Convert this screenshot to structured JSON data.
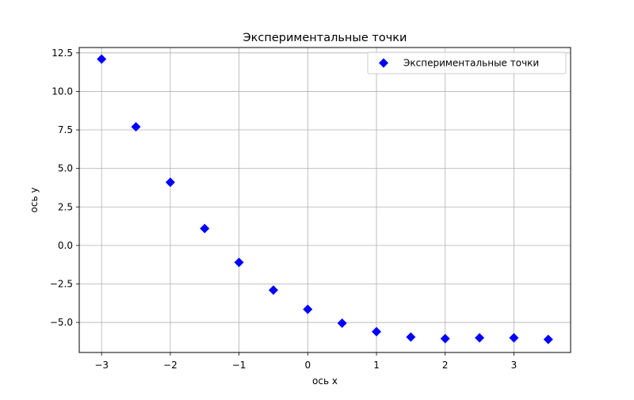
{
  "chart_data": {
    "type": "scatter",
    "title": "Экспериментальные точки",
    "xlabel": "ось x",
    "ylabel": "ось y",
    "xlim": [
      -3.325,
      3.825
    ],
    "ylim": [
      -6.95,
      12.85
    ],
    "xticks": [
      -3,
      -2,
      -1,
      0,
      1,
      2,
      3
    ],
    "xtick_labels": [
      "−3",
      "−2",
      "−1",
      "0",
      "1",
      "2",
      "3"
    ],
    "yticks": [
      -5.0,
      -2.5,
      0.0,
      2.5,
      5.0,
      7.5,
      10.0,
      12.5
    ],
    "ytick_labels": [
      "−5.0",
      "−2.5",
      "0.0",
      "2.5",
      "5.0",
      "7.5",
      "10.0",
      "12.5"
    ],
    "grid": true,
    "legend_position": "upper right",
    "series": [
      {
        "name": "Экспериментальные точки",
        "marker": "diamond",
        "color": "#0000ff",
        "x": [
          -3.0,
          -2.5,
          -2.0,
          -1.5,
          -1.0,
          -0.5,
          0.0,
          0.5,
          1.0,
          1.5,
          2.0,
          2.5,
          3.0,
          3.5
        ],
        "y": [
          12.1,
          7.7,
          4.1,
          1.1,
          -1.1,
          -2.9,
          -4.15,
          -5.05,
          -5.6,
          -5.95,
          -6.05,
          -6.0,
          -6.0,
          -6.1
        ]
      }
    ]
  }
}
